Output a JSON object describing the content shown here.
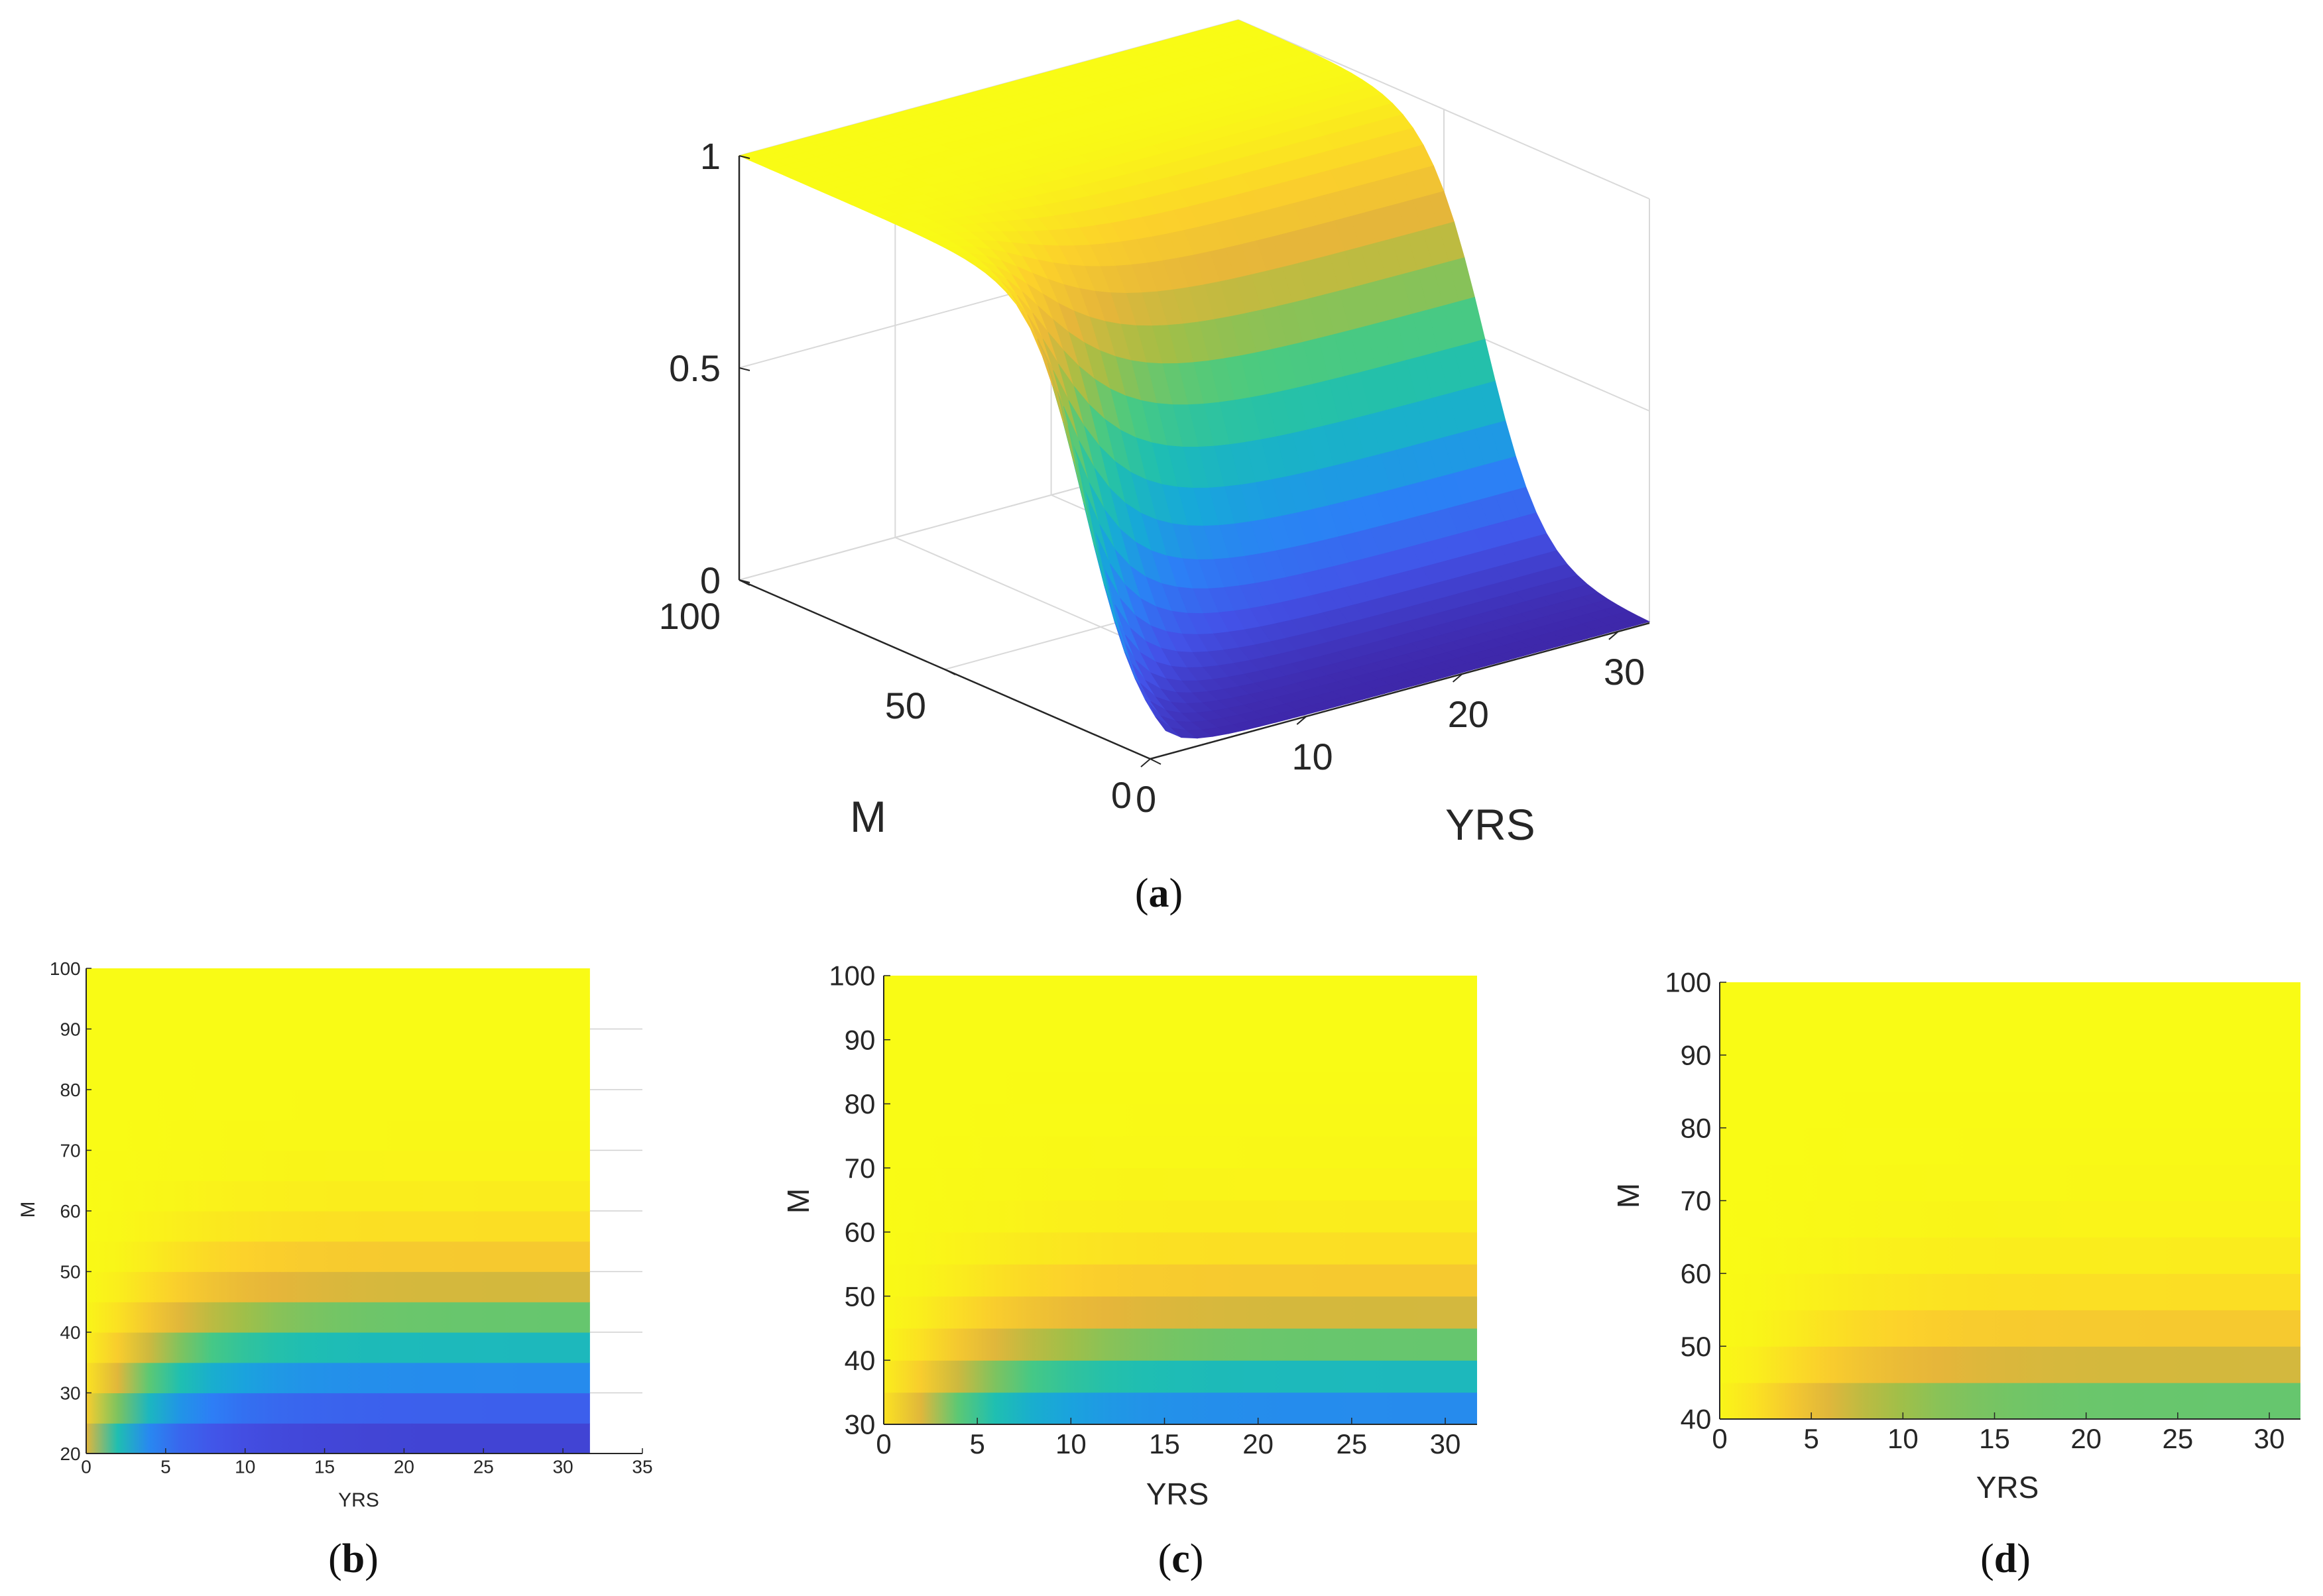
{
  "chart_data": [
    {
      "panel": "a",
      "type": "surface",
      "caption_letter": "a",
      "xlabel": "YRS",
      "ylabel": "M",
      "zlabel": "",
      "xlim": [
        0,
        32
      ],
      "ylim": [
        0,
        100
      ],
      "zlim": [
        0,
        1
      ],
      "x_ticks": [
        "0",
        "10",
        "20",
        "30"
      ],
      "y_ticks": [
        "0",
        "50",
        "100"
      ],
      "z_ticks": [
        "0",
        "0.5",
        "1"
      ],
      "grid": true,
      "colormap": "parula",
      "surface_profile": {
        "m_values": [
          0,
          10,
          20,
          25,
          30,
          35,
          40,
          45,
          50,
          55,
          60,
          65,
          70,
          80,
          90,
          100
        ],
        "z_at_yrs_32": [
          0.0,
          0.05,
          0.18,
          0.38,
          0.49,
          0.56,
          0.62,
          0.68,
          0.74,
          0.8,
          0.86,
          0.91,
          0.95,
          0.98,
          1.0,
          1.0
        ]
      }
    },
    {
      "panel": "b",
      "type": "heatmap",
      "caption_letter": "b",
      "xlabel": "YRS",
      "ylabel": "M",
      "xlim": [
        0,
        35
      ],
      "ylim": [
        20,
        100
      ],
      "x_ticks": [
        "0",
        "5",
        "10",
        "15",
        "20",
        "25",
        "30",
        "35"
      ],
      "y_ticks": [
        "20",
        "30",
        "40",
        "50",
        "60",
        "70",
        "80",
        "90",
        "100"
      ],
      "data_x_max": 31.7,
      "band_step": 5,
      "bands": [
        20,
        25,
        30,
        35,
        40,
        45,
        50,
        55,
        60,
        65,
        70,
        75,
        80,
        85,
        90,
        95
      ],
      "grid": true,
      "colormap": "parula"
    },
    {
      "panel": "c",
      "type": "heatmap",
      "caption_letter": "c",
      "xlabel": "YRS",
      "ylabel": "M",
      "xlim": [
        0,
        31.7
      ],
      "ylim": [
        30,
        100
      ],
      "x_ticks": [
        "0",
        "5",
        "10",
        "15",
        "20",
        "25",
        "30"
      ],
      "y_ticks": [
        "30",
        "40",
        "50",
        "60",
        "70",
        "80",
        "90",
        "100"
      ],
      "band_step": 5,
      "bands": [
        30,
        35,
        40,
        45,
        50,
        55,
        60,
        65,
        70,
        75,
        80,
        85,
        90,
        95
      ],
      "grid": false,
      "colormap": "parula"
    },
    {
      "panel": "d",
      "type": "heatmap",
      "caption_letter": "d",
      "xlabel": "YRS",
      "ylabel": "M",
      "xlim": [
        0,
        31.7
      ],
      "ylim": [
        40,
        100
      ],
      "x_ticks": [
        "0",
        "5",
        "10",
        "15",
        "20",
        "25",
        "30"
      ],
      "y_ticks": [
        "40",
        "50",
        "60",
        "70",
        "80",
        "90",
        "100"
      ],
      "band_step": 5,
      "bands": [
        40,
        45,
        50,
        55,
        60,
        65,
        70,
        75,
        80,
        85,
        90,
        95
      ],
      "grid": false,
      "colormap": "parula"
    }
  ],
  "colormap_stops": [
    "#3e26a8",
    "#4352e8",
    "#2c7ff6",
    "#17a8d9",
    "#1fbfb0",
    "#4cca7f",
    "#a4be46",
    "#e6b63a",
    "#fcd12b",
    "#f9fb15"
  ]
}
